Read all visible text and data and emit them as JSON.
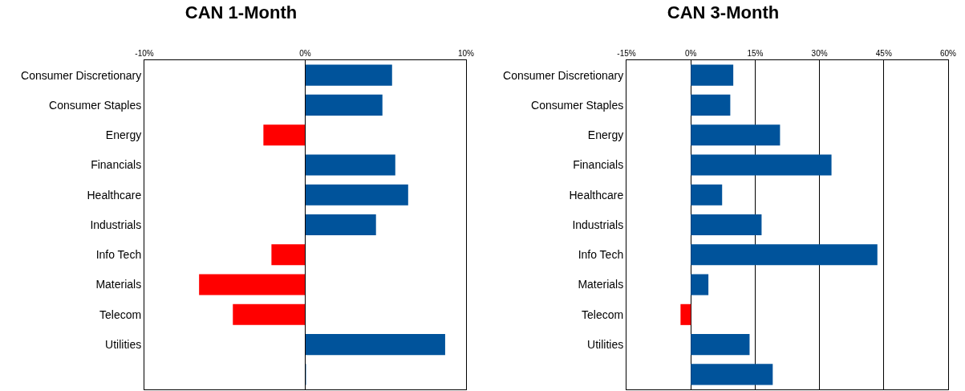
{
  "chart_data": [
    {
      "type": "bar",
      "title": "CAN 1-Month",
      "orientation": "horizontal",
      "categories": [
        "Consumer Discretionary",
        "Consumer Staples",
        "Energy",
        "Financials",
        "Healthcare",
        "Industrials",
        "Info Tech",
        "Materials",
        "Telecom",
        "Utilities",
        null
      ],
      "values": [
        5.4,
        4.8,
        -2.6,
        5.6,
        6.4,
        4.4,
        -2.1,
        -6.6,
        -4.5,
        8.7,
        0.05
      ],
      "colors": [
        "#00539b",
        "#00539b",
        "#ff0000",
        "#00539b",
        "#00539b",
        "#00539b",
        "#ff0000",
        "#ff0000",
        "#ff0000",
        "#00539b",
        "#00539b"
      ],
      "xlim": [
        -10,
        10
      ],
      "xticks": [
        {
          "value": -10,
          "label": "-10%"
        },
        {
          "value": 0,
          "label": "0%"
        },
        {
          "value": 10,
          "label": "10%"
        }
      ],
      "grid": false,
      "ref_lines": [
        {
          "axis": "x",
          "value": 0
        }
      ]
    },
    {
      "type": "bar",
      "title": "CAN 3-Month",
      "orientation": "horizontal",
      "categories": [
        "Consumer Discretionary",
        "Consumer Staples",
        "Energy",
        "Financials",
        "Healthcare",
        "Industrials",
        "Info Tech",
        "Materials",
        "Telecom",
        "Utilities",
        null
      ],
      "values": [
        9.9,
        9.2,
        20.8,
        32.8,
        7.3,
        16.5,
        43.5,
        4.1,
        -2.4,
        13.7,
        19.1
      ],
      "colors": [
        "#00539b",
        "#00539b",
        "#00539b",
        "#00539b",
        "#00539b",
        "#00539b",
        "#00539b",
        "#00539b",
        "#ff0000",
        "#00539b",
        "#00539b"
      ],
      "xlim": [
        -15,
        60
      ],
      "xticks": [
        {
          "value": -15,
          "label": "-15%"
        },
        {
          "value": 0,
          "label": "0%"
        },
        {
          "value": 15,
          "label": "15%"
        },
        {
          "value": 30,
          "label": "30%"
        },
        {
          "value": 45,
          "label": "45%"
        },
        {
          "value": 60,
          "label": "60%"
        }
      ],
      "grid": "x"
    }
  ]
}
